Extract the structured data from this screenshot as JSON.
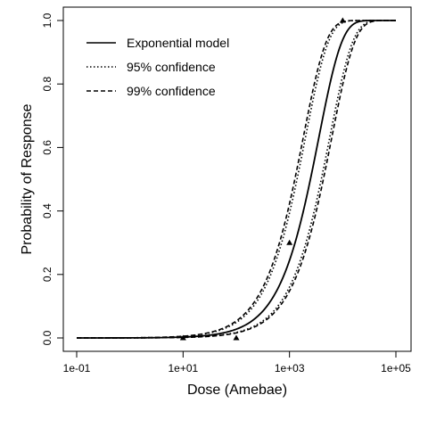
{
  "chart_data": {
    "type": "line",
    "xlabel": "Dose (Amebae)",
    "ylabel": "Probability of Response",
    "x_scale": "log10",
    "xlim": [
      0.1,
      100000
    ],
    "ylim": [
      0,
      1
    ],
    "x_ticks": [
      {
        "value": 0.1,
        "label": "1e-01"
      },
      {
        "value": 10,
        "label": "1e+01"
      },
      {
        "value": 1000,
        "label": "1e+03"
      },
      {
        "value": 100000,
        "label": "1e+05"
      }
    ],
    "y_ticks": [
      {
        "value": 0.0,
        "label": "0.0"
      },
      {
        "value": 0.2,
        "label": "0.2"
      },
      {
        "value": 0.4,
        "label": "0.4"
      },
      {
        "value": 0.6,
        "label": "0.6"
      },
      {
        "value": 0.8,
        "label": "0.8"
      },
      {
        "value": 1.0,
        "label": "1.0"
      }
    ],
    "grid": false,
    "legend_position": "top-left",
    "series": [
      {
        "name": "Exponential model",
        "style": "solid",
        "model": "exponential",
        "k": 0.00028
      },
      {
        "name": "95% confidence",
        "style": "dotted",
        "model": "exponential",
        "bounds_k": [
          0.0005,
          0.000175
        ]
      },
      {
        "name": "99% confidence",
        "style": "dashed",
        "model": "exponential",
        "bounds_k": [
          0.00055,
          0.00016
        ]
      }
    ],
    "observed_points": [
      {
        "x": 10,
        "y": 0.0
      },
      {
        "x": 100,
        "y": 0.0
      },
      {
        "x": 1000,
        "y": 0.3
      },
      {
        "x": 10000,
        "y": 1.0
      }
    ]
  }
}
